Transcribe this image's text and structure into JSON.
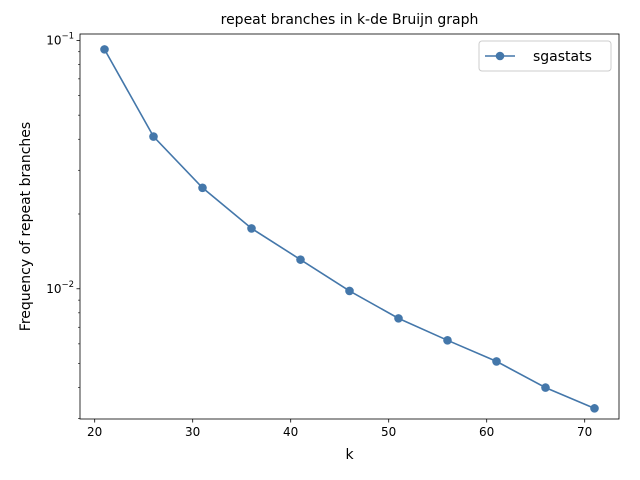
{
  "chart_data": {
    "type": "line",
    "title": "repeat branches in k-de Bruijn graph",
    "xlabel": "k",
    "ylabel": "Frequency of repeat branches",
    "xlim": [
      18.5,
      73.5
    ],
    "ylim": [
      0.00299,
      0.1061
    ],
    "yscale": "log",
    "grid": false,
    "legend_position": "top-right",
    "x_ticks": [
      {
        "value": 20,
        "label": "20"
      },
      {
        "value": 30,
        "label": "30"
      },
      {
        "value": 40,
        "label": "40"
      },
      {
        "value": 50,
        "label": "50"
      },
      {
        "value": 60,
        "label": "60"
      },
      {
        "value": 70,
        "label": "70"
      }
    ],
    "y_major_ticks": [
      {
        "value": 0.01,
        "base": "10",
        "exponent": "−2"
      },
      {
        "value": 0.1,
        "base": "10",
        "exponent": "−1"
      }
    ],
    "y_minor_ticks": [
      0.003,
      0.004,
      0.005,
      0.006,
      0.007,
      0.008,
      0.009,
      0.02,
      0.03,
      0.04,
      0.05,
      0.06,
      0.07,
      0.08,
      0.09
    ],
    "series": [
      {
        "name": "sgastats",
        "color": "#4477aa",
        "marker": "circle",
        "x": [
          21,
          26,
          31,
          36,
          41,
          46,
          51,
          56,
          61,
          66,
          71
        ],
        "y": [
          0.092,
          0.041,
          0.0255,
          0.0175,
          0.0131,
          0.0098,
          0.0076,
          0.0062,
          0.0051,
          0.004,
          0.0033
        ]
      }
    ]
  }
}
